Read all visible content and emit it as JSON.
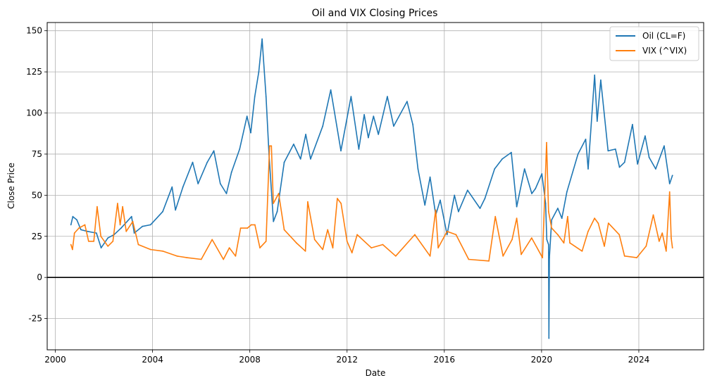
{
  "chart_data": {
    "type": "line",
    "title": "Oil and VIX Closing Prices",
    "xlabel": "Date",
    "ylabel": "Close Price",
    "x_ticks": [
      "2000",
      "2004",
      "2008",
      "2012",
      "2016",
      "2020",
      "2024"
    ],
    "y_ticks": [
      -25,
      0,
      25,
      50,
      75,
      100,
      125,
      150
    ],
    "xlim": [
      "1999-09-01",
      "2026-09-01"
    ],
    "ylim": [
      -44,
      155
    ],
    "grid": true,
    "legend_position": "top-right",
    "reference_line": {
      "y": 0,
      "color": "#000000"
    },
    "series": [
      {
        "name": "Oil (CL=F)",
        "color": "#1f77b4",
        "points": [
          [
            "2000-08-23",
            32
          ],
          [
            "2000-09-20",
            37
          ],
          [
            "2000-11-20",
            35
          ],
          [
            "2001-01-20",
            29
          ],
          [
            "2001-05-01",
            28
          ],
          [
            "2001-09-10",
            27
          ],
          [
            "2001-11-20",
            18
          ],
          [
            "2002-03-01",
            24
          ],
          [
            "2002-06-01",
            26
          ],
          [
            "2002-09-15",
            30
          ],
          [
            "2003-02-20",
            37
          ],
          [
            "2003-04-01",
            27
          ],
          [
            "2003-08-01",
            31
          ],
          [
            "2003-12-01",
            32
          ],
          [
            "2004-06-01",
            40
          ],
          [
            "2004-10-20",
            55
          ],
          [
            "2004-12-10",
            41
          ],
          [
            "2005-04-01",
            55
          ],
          [
            "2005-08-25",
            70
          ],
          [
            "2005-11-15",
            57
          ],
          [
            "2006-04-01",
            70
          ],
          [
            "2006-07-10",
            77
          ],
          [
            "2006-10-15",
            57
          ],
          [
            "2007-01-15",
            51
          ],
          [
            "2007-04-01",
            64
          ],
          [
            "2007-08-01",
            78
          ],
          [
            "2007-11-20",
            98
          ],
          [
            "2008-01-15",
            88
          ],
          [
            "2008-03-15",
            110
          ],
          [
            "2008-05-15",
            125
          ],
          [
            "2008-07-03",
            145
          ],
          [
            "2008-09-01",
            110
          ],
          [
            "2008-10-15",
            75
          ],
          [
            "2008-12-21",
            34
          ],
          [
            "2009-02-15",
            40
          ],
          [
            "2009-06-01",
            70
          ],
          [
            "2009-10-20",
            81
          ],
          [
            "2010-02-01",
            72
          ],
          [
            "2010-04-20",
            87
          ],
          [
            "2010-07-01",
            72
          ],
          [
            "2011-01-01",
            92
          ],
          [
            "2011-05-01",
            114
          ],
          [
            "2011-10-01",
            77
          ],
          [
            "2012-03-01",
            110
          ],
          [
            "2012-06-25",
            78
          ],
          [
            "2012-09-15",
            99
          ],
          [
            "2012-11-15",
            85
          ],
          [
            "2013-02-01",
            98
          ],
          [
            "2013-04-15",
            87
          ],
          [
            "2013-08-28",
            110
          ],
          [
            "2013-12-01",
            92
          ],
          [
            "2014-06-20",
            107
          ],
          [
            "2014-09-15",
            93
          ],
          [
            "2014-12-01",
            66
          ],
          [
            "2015-03-15",
            44
          ],
          [
            "2015-06-01",
            61
          ],
          [
            "2015-08-25",
            38
          ],
          [
            "2015-11-01",
            47
          ],
          [
            "2016-02-11",
            26
          ],
          [
            "2016-06-01",
            50
          ],
          [
            "2016-08-01",
            40
          ],
          [
            "2016-12-15",
            53
          ],
          [
            "2017-06-20",
            42
          ],
          [
            "2017-09-01",
            48
          ],
          [
            "2018-01-25",
            66
          ],
          [
            "2018-05-20",
            72
          ],
          [
            "2018-10-03",
            76
          ],
          [
            "2018-12-24",
            43
          ],
          [
            "2019-04-20",
            66
          ],
          [
            "2019-08-07",
            51
          ],
          [
            "2019-10-01",
            54
          ],
          [
            "2020-01-05",
            63
          ],
          [
            "2020-03-01",
            45
          ],
          [
            "2020-03-20",
            23
          ],
          [
            "2020-04-15",
            20
          ],
          [
            "2020-04-20",
            -37
          ],
          [
            "2020-04-28",
            12
          ],
          [
            "2020-06-01",
            35
          ],
          [
            "2020-09-01",
            42
          ],
          [
            "2020-11-01",
            36
          ],
          [
            "2021-01-15",
            52
          ],
          [
            "2021-07-01",
            75
          ],
          [
            "2021-10-25",
            84
          ],
          [
            "2021-12-01",
            66
          ],
          [
            "2022-03-08",
            123
          ],
          [
            "2022-04-15",
            95
          ],
          [
            "2022-06-08",
            120
          ],
          [
            "2022-09-26",
            77
          ],
          [
            "2023-01-15",
            78
          ],
          [
            "2023-03-17",
            67
          ],
          [
            "2023-06-01",
            70
          ],
          [
            "2023-09-27",
            93
          ],
          [
            "2023-12-12",
            69
          ],
          [
            "2024-04-05",
            86
          ],
          [
            "2024-06-04",
            73
          ],
          [
            "2024-09-10",
            66
          ],
          [
            "2025-01-15",
            80
          ],
          [
            "2025-04-08",
            57
          ],
          [
            "2025-05-20",
            62
          ]
        ]
      },
      {
        "name": "VIX (^VIX)",
        "color": "#ff7f0e",
        "points": [
          [
            "2000-08-23",
            20
          ],
          [
            "2000-09-15",
            17
          ],
          [
            "2000-10-15",
            27
          ],
          [
            "2000-12-20",
            30
          ],
          [
            "2001-03-20",
            32
          ],
          [
            "2001-05-15",
            22
          ],
          [
            "2001-08-01",
            22
          ],
          [
            "2001-09-20",
            43
          ],
          [
            "2001-11-15",
            25
          ],
          [
            "2002-03-01",
            19
          ],
          [
            "2002-05-15",
            22
          ],
          [
            "2002-07-24",
            45
          ],
          [
            "2002-09-01",
            32
          ],
          [
            "2002-10-08",
            43
          ],
          [
            "2002-12-01",
            28
          ],
          [
            "2003-03-10",
            34
          ],
          [
            "2003-06-01",
            20
          ],
          [
            "2003-12-01",
            17
          ],
          [
            "2004-06-01",
            16
          ],
          [
            "2005-01-01",
            13
          ],
          [
            "2005-06-01",
            12
          ],
          [
            "2006-01-01",
            11
          ],
          [
            "2006-06-14",
            23
          ],
          [
            "2006-12-01",
            11
          ],
          [
            "2007-02-27",
            18
          ],
          [
            "2007-06-01",
            13
          ],
          [
            "2007-08-16",
            30
          ],
          [
            "2007-11-26",
            30
          ],
          [
            "2008-01-22",
            32
          ],
          [
            "2008-03-17",
            32
          ],
          [
            "2008-06-01",
            18
          ],
          [
            "2008-09-01",
            22
          ],
          [
            "2008-10-24",
            80
          ],
          [
            "2008-11-20",
            80
          ],
          [
            "2008-12-20",
            45
          ],
          [
            "2009-03-09",
            51
          ],
          [
            "2009-06-01",
            29
          ],
          [
            "2009-12-01",
            21
          ],
          [
            "2010-04-15",
            16
          ],
          [
            "2010-05-20",
            46
          ],
          [
            "2010-09-01",
            23
          ],
          [
            "2011-01-01",
            17
          ],
          [
            "2011-03-16",
            29
          ],
          [
            "2011-06-01",
            18
          ],
          [
            "2011-08-08",
            48
          ],
          [
            "2011-10-03",
            45
          ],
          [
            "2012-01-01",
            22
          ],
          [
            "2012-03-15",
            15
          ],
          [
            "2012-06-01",
            26
          ],
          [
            "2012-12-31",
            18
          ],
          [
            "2013-06-20",
            20
          ],
          [
            "2014-01-01",
            13
          ],
          [
            "2014-10-15",
            26
          ],
          [
            "2015-06-01",
            13
          ],
          [
            "2015-08-24",
            41
          ],
          [
            "2015-10-01",
            18
          ],
          [
            "2016-02-11",
            28
          ],
          [
            "2016-06-24",
            26
          ],
          [
            "2017-01-01",
            11
          ],
          [
            "2017-11-01",
            10
          ],
          [
            "2018-02-05",
            37
          ],
          [
            "2018-06-01",
            13
          ],
          [
            "2018-10-15",
            23
          ],
          [
            "2018-12-24",
            36
          ],
          [
            "2019-03-01",
            14
          ],
          [
            "2019-08-05",
            24
          ],
          [
            "2020-01-15",
            12
          ],
          [
            "2020-03-16",
            82
          ],
          [
            "2020-04-15",
            40
          ],
          [
            "2020-06-01",
            30
          ],
          [
            "2020-09-01",
            26
          ],
          [
            "2020-12-01",
            21
          ],
          [
            "2021-01-27",
            37
          ],
          [
            "2021-03-01",
            21
          ],
          [
            "2021-09-01",
            16
          ],
          [
            "2021-11-30",
            28
          ],
          [
            "2022-03-07",
            36
          ],
          [
            "2022-05-01",
            33
          ],
          [
            "2022-08-01",
            19
          ],
          [
            "2022-10-01",
            33
          ],
          [
            "2023-03-13",
            26
          ],
          [
            "2023-06-01",
            13
          ],
          [
            "2023-12-01",
            12
          ],
          [
            "2024-04-19",
            19
          ],
          [
            "2024-08-05",
            38
          ],
          [
            "2024-11-01",
            22
          ],
          [
            "2024-12-18",
            27
          ],
          [
            "2025-02-15",
            16
          ],
          [
            "2025-04-08",
            52
          ],
          [
            "2025-05-01",
            24
          ],
          [
            "2025-05-20",
            18
          ]
        ]
      }
    ]
  }
}
